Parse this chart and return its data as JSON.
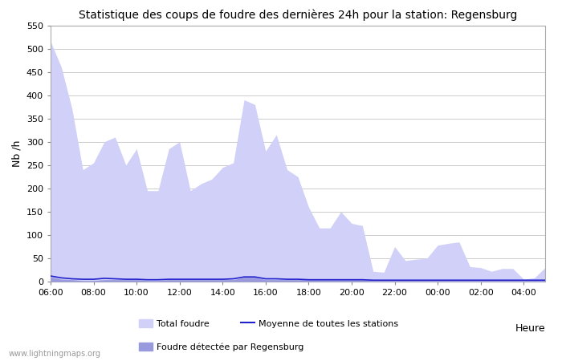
{
  "title": "Statistique des coups de foudre des dernières 24h pour la station: Regensburg",
  "xlabel": "Heure",
  "ylabel": "Nb /h",
  "ylim": [
    0,
    550
  ],
  "yticks": [
    0,
    50,
    100,
    150,
    200,
    250,
    300,
    350,
    400,
    450,
    500,
    550
  ],
  "xtick_labels": [
    "06:00",
    "08:00",
    "10:00",
    "12:00",
    "14:00",
    "16:00",
    "18:00",
    "20:00",
    "22:00",
    "00:00",
    "02:00",
    "04:00"
  ],
  "background_color": "#ffffff",
  "grid_color": "#cccccc",
  "fill_total_color": "#d0d0f8",
  "fill_regensburg_color": "#9999dd",
  "line_color": "#2222cc",
  "watermark": "www.lightningmaps.org",
  "total_foudre": [
    515,
    460,
    370,
    240,
    255,
    300,
    310,
    250,
    285,
    195,
    195,
    285,
    300,
    195,
    210,
    220,
    245,
    255,
    390,
    380,
    280,
    315,
    240,
    225,
    160,
    115,
    115,
    150,
    125,
    120,
    22,
    20,
    75,
    45,
    48,
    50,
    78,
    82,
    85,
    32,
    30,
    22,
    28,
    28,
    5,
    8,
    30
  ],
  "regensburg": [
    10,
    5,
    4,
    2,
    2,
    4,
    4,
    4,
    4,
    2,
    2,
    4,
    4,
    4,
    4,
    4,
    4,
    4,
    9,
    9,
    4,
    4,
    4,
    4,
    4,
    4,
    4,
    4,
    4,
    4,
    2,
    2,
    2,
    2,
    2,
    2,
    2,
    2,
    2,
    2,
    2,
    2,
    2,
    2,
    2,
    2,
    2
  ],
  "moyenne": [
    12,
    8,
    6,
    5,
    5,
    7,
    6,
    5,
    5,
    4,
    4,
    5,
    5,
    5,
    5,
    5,
    5,
    6,
    10,
    10,
    6,
    6,
    5,
    5,
    4,
    4,
    4,
    4,
    4,
    4,
    3,
    3,
    3,
    3,
    3,
    3,
    3,
    3,
    3,
    3,
    3,
    3,
    3,
    3,
    3,
    3,
    3
  ],
  "legend_total_label": "Total foudre",
  "legend_moyenne_label": "Moyenne de toutes les stations",
  "legend_regensburg_label": "Foudre détectée par Regensburg"
}
